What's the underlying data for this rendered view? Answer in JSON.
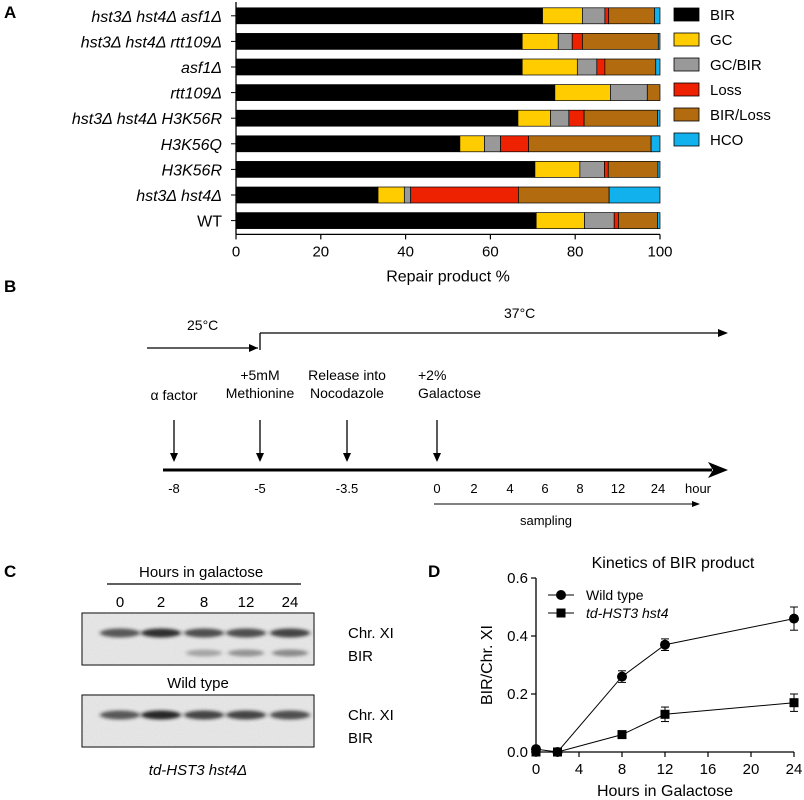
{
  "panel_labels": {
    "a": "A",
    "b": "B",
    "c": "C",
    "d": "D"
  },
  "colors": {
    "BIR": "#000000",
    "GC": "#FFCC00",
    "GC/BIR": "#999999",
    "Loss": "#EE2200",
    "BIR/Loss": "#B36B10",
    "HCO": "#11B1EE"
  },
  "chart_data": [
    {
      "type": "bar",
      "orientation": "horizontal",
      "stacked": true,
      "categories": [
        "hst3Δ hst4Δ asf1Δ",
        "hst3Δ hst4Δ rtt109Δ",
        "asf1Δ",
        "rtt109Δ",
        "hst3Δ hst4Δ H3K56R",
        "H3K56Q",
        "H3K56R",
        "hst3Δ hst4Δ",
        "WT"
      ],
      "series": [
        {
          "name": "BIR",
          "values": [
            72.3,
            67.5,
            67.5,
            75.2,
            66.5,
            52.8,
            70.5,
            33.5,
            70.8
          ]
        },
        {
          "name": "GC",
          "values": [
            9.4,
            8.5,
            13.0,
            13.1,
            7.7,
            5.8,
            10.6,
            6.2,
            11.4
          ]
        },
        {
          "name": "GC/BIR",
          "values": [
            5.3,
            3.3,
            4.6,
            8.7,
            4.3,
            3.8,
            5.8,
            1.5,
            7.0
          ]
        },
        {
          "name": "Loss",
          "values": [
            0.9,
            2.4,
            1.9,
            0.0,
            3.6,
            6.6,
            0.9,
            25.4,
            1.0
          ]
        },
        {
          "name": "BIR/Loss",
          "values": [
            10.8,
            17.9,
            12.0,
            3.0,
            17.3,
            28.9,
            11.7,
            21.4,
            9.2
          ]
        },
        {
          "name": "HCO",
          "values": [
            1.3,
            0.4,
            1.0,
            0.0,
            0.6,
            2.1,
            0.5,
            12.0,
            0.6
          ]
        }
      ],
      "xlabel": "Repair product %",
      "xlim": [
        0,
        100
      ],
      "xticks": [
        0,
        20,
        40,
        60,
        80,
        100
      ],
      "legend_position": "right"
    },
    {
      "type": "line",
      "title": "Kinetics of BIR product",
      "xlabel": "Hours in Galactose",
      "ylabel": "BIR/Chr. XI",
      "xlim": [
        0,
        24
      ],
      "ylim": [
        0,
        0.6
      ],
      "xticks": [
        0,
        4,
        8,
        12,
        16,
        20,
        24
      ],
      "yticks": [
        "0.0",
        "0.2",
        "0.4",
        "0.6"
      ],
      "legend_position": "top-left",
      "series": [
        {
          "name": "Wild type",
          "marker": "circle",
          "x": [
            0,
            2,
            8,
            12,
            24
          ],
          "y": [
            0.01,
            0.0,
            0.26,
            0.37,
            0.46
          ],
          "err": [
            0.0,
            0.0,
            0.02,
            0.02,
            0.04
          ]
        },
        {
          "name": "td-HST3 hst4",
          "marker": "square",
          "x": [
            0,
            2,
            8,
            12,
            24
          ],
          "y": [
            0.0,
            0.0,
            0.06,
            0.13,
            0.17
          ],
          "err": [
            0.0,
            0.0,
            0.0,
            0.025,
            0.03
          ]
        }
      ]
    }
  ],
  "timeline": {
    "temp1": "25°C",
    "temp2": "37°C",
    "steps": [
      {
        "lines": [
          "α  factor"
        ]
      },
      {
        "lines": [
          "+5mM",
          "Methionine"
        ]
      },
      {
        "lines": [
          "Release into",
          "Nocodazole"
        ]
      },
      {
        "lines": [
          "+2%",
          "Galactose"
        ]
      }
    ],
    "ticks": [
      "-8",
      "-5",
      "-3.5",
      "0",
      "2",
      "4",
      "6",
      "8",
      "12",
      "24",
      "hour"
    ],
    "sampling": "sampling"
  },
  "blot": {
    "header": "Hours in galactose",
    "lanes": [
      "0",
      "2",
      "8",
      "12",
      "24"
    ],
    "panels": [
      {
        "band1": "Chr. XI",
        "band2": "BIR",
        "caption": "Wild type",
        "band1_intensity": [
          0.7,
          0.9,
          0.75,
          0.75,
          0.8
        ],
        "band2_intensity": [
          0.0,
          0.0,
          0.35,
          0.45,
          0.5
        ]
      },
      {
        "band1": "Chr. XI",
        "band2": "BIR",
        "caption": "td-HST3 hst4Δ",
        "band1_intensity": [
          0.7,
          0.95,
          0.8,
          0.8,
          0.75
        ],
        "band2_intensity": [
          0.0,
          0.0,
          0.0,
          0.0,
          0.0
        ]
      }
    ]
  }
}
